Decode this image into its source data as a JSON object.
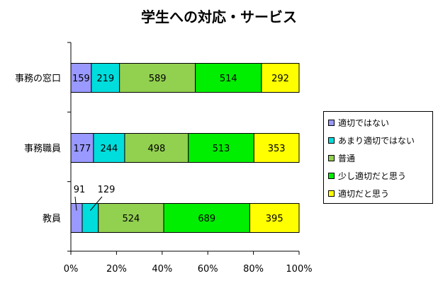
{
  "chart_data": {
    "type": "bar",
    "orientation": "horizontal",
    "stacked": "percent",
    "title": "学生への対応・サービス",
    "categories": [
      "事務の窓口",
      "事務職員",
      "教員"
    ],
    "series": [
      {
        "name": "適切ではない",
        "color": "#9999ff",
        "values": [
          159,
          177,
          91
        ]
      },
      {
        "name": "あまり適切ではない",
        "color": "#00dddd",
        "values": [
          219,
          244,
          129
        ]
      },
      {
        "name": "普通",
        "color": "#92d050",
        "values": [
          589,
          498,
          524
        ]
      },
      {
        "name": "少し適切だと思う",
        "color": "#00ee00",
        "values": [
          514,
          513,
          689
        ]
      },
      {
        "name": "適切だと思う",
        "color": "#ffff00",
        "values": [
          292,
          353,
          395
        ]
      }
    ],
    "x_ticks": [
      "0%",
      "20%",
      "40%",
      "60%",
      "80%",
      "100%"
    ],
    "xlim": [
      0,
      100
    ],
    "grid": false,
    "legend_position": "right"
  }
}
